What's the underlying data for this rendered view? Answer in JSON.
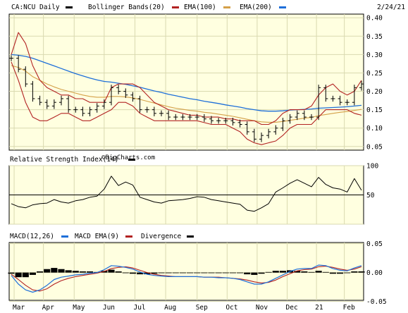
{
  "chart_data": [
    {
      "type": "line",
      "panel": "price",
      "symbol": "CA:NCU",
      "legend": [
        {
          "name": "CA:NCU Daily",
          "color": "#000000"
        },
        {
          "name": "Bollinger Bands(20)",
          "color": "#b22222"
        },
        {
          "name": "EMA(100)",
          "color": "#d4a048"
        },
        {
          "name": "EMA(200)",
          "color": "#1e6fd9"
        }
      ],
      "date_label": "2/24/21",
      "watermark": "©BigCharts.com",
      "ylim": [
        0.04,
        0.41
      ],
      "yticks": [
        0.05,
        0.1,
        0.15,
        0.2,
        0.25,
        0.3,
        0.35,
        0.4
      ],
      "ytick_labels": [
        "0.05",
        "0.10",
        "0.15",
        "0.20",
        "0.25",
        "0.30",
        "0.35",
        "0.40"
      ],
      "x_index_range": [
        0,
        49
      ],
      "x_month_ticks": [
        {
          "label": "Mar",
          "i": 0.4
        },
        {
          "label": "Apr",
          "i": 4.5
        },
        {
          "label": "May",
          "i": 8.8
        },
        {
          "label": "Jun",
          "i": 13.0
        },
        {
          "label": "Jul",
          "i": 17.3
        },
        {
          "label": "Aug",
          "i": 21.6
        },
        {
          "label": "Sep",
          "i": 26.0
        },
        {
          "label": "Oct",
          "i": 30.2
        },
        {
          "label": "Nov",
          "i": 34.4
        },
        {
          "label": "Dec",
          "i": 38.6
        },
        {
          "label": "21",
          "i": 42.7
        },
        {
          "label": "Feb",
          "i": 46.6
        }
      ],
      "price": [
        0.29,
        0.26,
        0.22,
        0.18,
        0.17,
        0.16,
        0.17,
        0.18,
        0.15,
        0.15,
        0.14,
        0.15,
        0.16,
        0.17,
        0.21,
        0.2,
        0.19,
        0.18,
        0.15,
        0.15,
        0.14,
        0.14,
        0.13,
        0.13,
        0.13,
        0.13,
        0.13,
        0.125,
        0.12,
        0.12,
        0.12,
        0.115,
        0.11,
        0.09,
        0.07,
        0.08,
        0.09,
        0.1,
        0.12,
        0.13,
        0.14,
        0.13,
        0.13,
        0.21,
        0.18,
        0.18,
        0.17,
        0.17,
        0.21,
        0.22
      ],
      "bb_upper": [
        0.3,
        0.36,
        0.33,
        0.27,
        0.23,
        0.21,
        0.2,
        0.19,
        0.19,
        0.18,
        0.18,
        0.17,
        0.17,
        0.17,
        0.21,
        0.22,
        0.22,
        0.22,
        0.21,
        0.19,
        0.17,
        0.16,
        0.15,
        0.145,
        0.14,
        0.135,
        0.135,
        0.13,
        0.13,
        0.13,
        0.125,
        0.125,
        0.12,
        0.12,
        0.12,
        0.11,
        0.11,
        0.12,
        0.14,
        0.15,
        0.15,
        0.15,
        0.16,
        0.19,
        0.21,
        0.22,
        0.2,
        0.19,
        0.2,
        0.23
      ],
      "bb_lower": [
        0.28,
        0.23,
        0.17,
        0.13,
        0.12,
        0.12,
        0.13,
        0.14,
        0.14,
        0.13,
        0.12,
        0.12,
        0.13,
        0.14,
        0.15,
        0.17,
        0.17,
        0.16,
        0.14,
        0.13,
        0.12,
        0.12,
        0.12,
        0.12,
        0.12,
        0.12,
        0.12,
        0.115,
        0.11,
        0.11,
        0.11,
        0.1,
        0.09,
        0.07,
        0.06,
        0.055,
        0.06,
        0.065,
        0.08,
        0.1,
        0.11,
        0.11,
        0.11,
        0.13,
        0.15,
        0.15,
        0.15,
        0.15,
        0.14,
        0.135
      ],
      "ema100": [
        0.27,
        0.265,
        0.255,
        0.24,
        0.23,
        0.22,
        0.212,
        0.205,
        0.2,
        0.195,
        0.19,
        0.186,
        0.184,
        0.184,
        0.186,
        0.186,
        0.185,
        0.182,
        0.178,
        0.173,
        0.168,
        0.163,
        0.158,
        0.154,
        0.151,
        0.148,
        0.146,
        0.143,
        0.141,
        0.138,
        0.135,
        0.132,
        0.128,
        0.124,
        0.12,
        0.117,
        0.116,
        0.116,
        0.118,
        0.121,
        0.124,
        0.127,
        0.129,
        0.134,
        0.137,
        0.14,
        0.143,
        0.145,
        0.148,
        0.151
      ],
      "ema200": [
        0.3,
        0.298,
        0.295,
        0.29,
        0.283,
        0.276,
        0.269,
        0.262,
        0.255,
        0.248,
        0.242,
        0.236,
        0.231,
        0.227,
        0.225,
        0.222,
        0.219,
        0.215,
        0.211,
        0.206,
        0.201,
        0.197,
        0.192,
        0.188,
        0.184,
        0.18,
        0.177,
        0.173,
        0.17,
        0.167,
        0.163,
        0.16,
        0.157,
        0.153,
        0.15,
        0.147,
        0.146,
        0.146,
        0.147,
        0.149,
        0.15,
        0.151,
        0.152,
        0.154,
        0.155,
        0.156,
        0.157,
        0.158,
        0.16,
        0.162
      ]
    },
    {
      "type": "line",
      "panel": "rsi",
      "legend": [
        {
          "name": "Relative Strength Index(14)",
          "color": "#000000"
        }
      ],
      "ylim": [
        0,
        100
      ],
      "yticks": [
        0,
        50,
        100
      ],
      "ytick_labels": [
        "",
        "50",
        "100"
      ],
      "midline": 50,
      "rsi": [
        35,
        30,
        28,
        33,
        35,
        36,
        42,
        38,
        36,
        40,
        42,
        46,
        48,
        60,
        82,
        66,
        72,
        67,
        46,
        42,
        38,
        36,
        40,
        41,
        42,
        44,
        47,
        46,
        42,
        40,
        38,
        36,
        34,
        24,
        22,
        28,
        35,
        55,
        62,
        70,
        76,
        70,
        64,
        80,
        68,
        62,
        60,
        55,
        78,
        58
      ]
    },
    {
      "type": "line",
      "panel": "macd",
      "legend": [
        {
          "name": "MACD(12,26)",
          "color": "#1e6fd9"
        },
        {
          "name": "MACD EMA(9)",
          "color": "#b22222"
        },
        {
          "name": "Divergence",
          "color": "#000000"
        }
      ],
      "ylim": [
        -0.048,
        0.052
      ],
      "yticks": [
        -0.05,
        0.0,
        0.05
      ],
      "ytick_labels": [
        "-0.05",
        "0.00",
        "0.05"
      ],
      "macd": [
        -0.005,
        -0.02,
        -0.03,
        -0.034,
        -0.03,
        -0.022,
        -0.012,
        -0.008,
        -0.006,
        -0.004,
        -0.003,
        -0.001,
        0.0,
        0.005,
        0.012,
        0.011,
        0.009,
        0.006,
        0.001,
        -0.003,
        -0.005,
        -0.006,
        -0.007,
        -0.007,
        -0.007,
        -0.007,
        -0.007,
        -0.008,
        -0.008,
        -0.009,
        -0.009,
        -0.01,
        -0.012,
        -0.016,
        -0.02,
        -0.02,
        -0.016,
        -0.01,
        -0.004,
        0.002,
        0.006,
        0.007,
        0.007,
        0.013,
        0.012,
        0.007,
        0.004,
        0.003,
        0.008,
        0.012
      ],
      "signal": [
        -0.003,
        -0.012,
        -0.022,
        -0.03,
        -0.032,
        -0.028,
        -0.02,
        -0.014,
        -0.01,
        -0.007,
        -0.005,
        -0.003,
        -0.001,
        0.002,
        0.007,
        0.009,
        0.01,
        0.008,
        0.004,
        0.0,
        -0.003,
        -0.005,
        -0.006,
        -0.007,
        -0.007,
        -0.007,
        -0.007,
        -0.008,
        -0.008,
        -0.008,
        -0.009,
        -0.01,
        -0.011,
        -0.013,
        -0.016,
        -0.018,
        -0.017,
        -0.013,
        -0.007,
        -0.002,
        0.003,
        0.005,
        0.006,
        0.01,
        0.011,
        0.009,
        0.006,
        0.004,
        0.006,
        0.01
      ],
      "divergence": [
        -0.002,
        -0.008,
        -0.008,
        -0.004,
        0.002,
        0.006,
        0.008,
        0.006,
        0.004,
        0.003,
        0.002,
        0.002,
        0.001,
        0.003,
        0.005,
        0.002,
        -0.001,
        -0.002,
        -0.003,
        -0.003,
        -0.002,
        -0.001,
        -0.001,
        0.0,
        0.0,
        0.0,
        0.0,
        0.0,
        0.0,
        -0.001,
        0.0,
        0.0,
        -0.001,
        -0.003,
        -0.004,
        -0.002,
        0.001,
        0.003,
        0.003,
        0.004,
        0.003,
        0.002,
        0.001,
        0.003,
        0.001,
        -0.002,
        -0.002,
        -0.001,
        0.002,
        0.002
      ]
    }
  ]
}
